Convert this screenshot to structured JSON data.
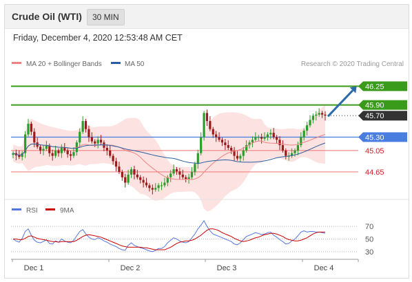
{
  "header": {
    "title": "Crude Oil (WTI)",
    "timeframe": "30 MIN",
    "datetime": "Friday, December 4, 2020 12:53:48 AM CET"
  },
  "price_panel": {
    "legend": [
      {
        "label": "MA 20 + Bollinger Bands",
        "color": "#f08080"
      },
      {
        "label": "MA 50",
        "color": "#2a5d9f"
      }
    ],
    "credit": "Research © 2020 Trading Central"
  },
  "rsi_panel": {
    "legend": [
      {
        "label": "RSI",
        "color": "#5577dd"
      },
      {
        "label": "9MA",
        "color": "#cc0000"
      }
    ]
  },
  "colors": {
    "up_candle": "#2a9d2a",
    "down_candle": "#9b1b1b",
    "resistance": "#3a9a1a",
    "support": "#f08080",
    "pivot": "#4a7de0",
    "band_fill": "#fde2e2",
    "arrow": "#2a6aab"
  },
  "chart_data": [
    {
      "type": "candlestick",
      "ylim": [
        44.2,
        46.55
      ],
      "x_tick_labels": [
        "Dec 1",
        "Dec 2",
        "Dec 3",
        "Dec 4"
      ],
      "levels": [
        {
          "value": 46.25,
          "label": "46.25",
          "kind": "resistance"
        },
        {
          "value": 45.9,
          "label": "45.90",
          "kind": "resistance"
        },
        {
          "value": 45.7,
          "label": "45.70",
          "kind": "last_price"
        },
        {
          "value": 45.3,
          "label": "45.30",
          "kind": "pivot"
        },
        {
          "value": 45.05,
          "label": "45.05",
          "kind": "support"
        },
        {
          "value": 44.65,
          "label": "44.65",
          "kind": "support"
        }
      ],
      "close": [
        45.0,
        44.96,
        44.93,
        45.0,
        45.35,
        45.55,
        45.4,
        45.2,
        45.12,
        45.05,
        45.08,
        45.14,
        45.0,
        44.95,
        45.05,
        45.0,
        45.1,
        45.05,
        44.98,
        44.95,
        45.02,
        45.2,
        45.4,
        45.6,
        45.45,
        45.3,
        45.22,
        45.18,
        45.25,
        45.2,
        45.1,
        45.05,
        44.95,
        44.85,
        44.75,
        44.65,
        44.55,
        44.45,
        44.6,
        44.7,
        44.6,
        44.55,
        44.5,
        44.45,
        44.4,
        44.35,
        44.32,
        44.35,
        44.4,
        44.4,
        44.45,
        44.55,
        44.62,
        44.7,
        44.66,
        44.6,
        44.55,
        44.52,
        44.55,
        44.65,
        44.8,
        45.0,
        45.3,
        45.75,
        45.6,
        45.45,
        45.35,
        45.3,
        45.25,
        45.2,
        45.15,
        45.1,
        45.05,
        44.95,
        44.9,
        44.95,
        45.05,
        45.15,
        45.2,
        45.25,
        45.3,
        45.3,
        45.27,
        45.3,
        45.35,
        45.38,
        45.3,
        45.25,
        45.15,
        45.05,
        44.95,
        44.95,
        45.0,
        45.05,
        45.15,
        45.3,
        45.42,
        45.52,
        45.62,
        45.7,
        45.72,
        45.75,
        45.72,
        45.7
      ],
      "rsi": {
        "yticks": [
          70,
          50,
          30
        ],
        "rsi_values": [
          50,
          47,
          45,
          51,
          62,
          66,
          56,
          48,
          45,
          44,
          46,
          49,
          43,
          42,
          47,
          45,
          50,
          47,
          45,
          44,
          48,
          55,
          62,
          65,
          58,
          53,
          50,
          49,
          52,
          50,
          47,
          45,
          42,
          40,
          38,
          35,
          33,
          32,
          40,
          44,
          40,
          38,
          36,
          35,
          33,
          31,
          30,
          32,
          35,
          35,
          38,
          44,
          48,
          52,
          50,
          47,
          45,
          44,
          46,
          52,
          58,
          66,
          72,
          79,
          70,
          63,
          58,
          56,
          54,
          52,
          50,
          48,
          46,
          42,
          41,
          44,
          49,
          54,
          56,
          58,
          60,
          59,
          57,
          58,
          60,
          61,
          56,
          53,
          49,
          46,
          42,
          43,
          47,
          50,
          55,
          61,
          63,
          61,
          62,
          62,
          61,
          61,
          60,
          59
        ],
        "ma_values": [
          50,
          50,
          49,
          49,
          51,
          54,
          55,
          53,
          51,
          50,
          49,
          48,
          47,
          46,
          46,
          45,
          46,
          46,
          46,
          46,
          46,
          48,
          51,
          54,
          56,
          57,
          56,
          55,
          54,
          53,
          51,
          49,
          47,
          45,
          43,
          41,
          39,
          38,
          37,
          37,
          37,
          37,
          37,
          36,
          36,
          35,
          34,
          33,
          33,
          33,
          33,
          35,
          37,
          40,
          43,
          45,
          46,
          47,
          47,
          48,
          50,
          53,
          56,
          60,
          64,
          66,
          66,
          65,
          63,
          60,
          58,
          56,
          54,
          51,
          49,
          47,
          46,
          47,
          48,
          50,
          52,
          53,
          55,
          57,
          58,
          59,
          59,
          58,
          56,
          54,
          51,
          49,
          48,
          47,
          47,
          48,
          50,
          52,
          55,
          58,
          60,
          61,
          61,
          61
        ]
      }
    }
  ]
}
